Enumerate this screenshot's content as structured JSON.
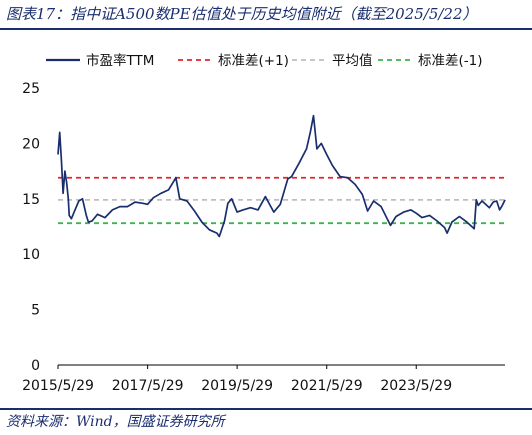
{
  "figure": {
    "title": "图表17：指中证A500数PE估值处于历史均值附近（截至2025/5/22）",
    "source": "资料来源：Wind，国盛证券研究所"
  },
  "chart_data": {
    "type": "line",
    "title": "",
    "xlabel": "",
    "ylabel": "",
    "ylim": [
      0,
      25
    ],
    "yticks": [
      0,
      5,
      10,
      15,
      20,
      25
    ],
    "xlim": [
      "2015-05-29",
      "2025-05-22"
    ],
    "xticks": [
      "2015-05-29",
      "2017-05-29",
      "2019-05-29",
      "2021-05-29",
      "2023-05-29"
    ],
    "xtick_labels": [
      "2015/5/29",
      "2017/5/29",
      "2019/5/29",
      "2021/5/29",
      "2023/5/29"
    ],
    "grid": false,
    "legend_position": "top",
    "series": [
      {
        "name": "市盈率TTM",
        "color": "#1a2e6e",
        "style": "solid",
        "points": [
          [
            "2015-05-29",
            19.0
          ],
          [
            "2015-06-12",
            21.0
          ],
          [
            "2015-06-26",
            18.5
          ],
          [
            "2015-07-10",
            15.5
          ],
          [
            "2015-07-24",
            17.5
          ],
          [
            "2015-08-07",
            16.5
          ],
          [
            "2015-08-21",
            15.0
          ],
          [
            "2015-08-28",
            13.5
          ],
          [
            "2015-09-15",
            13.2
          ],
          [
            "2015-10-15",
            14.0
          ],
          [
            "2015-11-15",
            14.8
          ],
          [
            "2015-12-15",
            15.0
          ],
          [
            "2016-01-15",
            13.5
          ],
          [
            "2016-02-01",
            12.9
          ],
          [
            "2016-03-01",
            13.0
          ],
          [
            "2016-04-15",
            13.6
          ],
          [
            "2016-06-15",
            13.3
          ],
          [
            "2016-08-15",
            14.0
          ],
          [
            "2016-10-15",
            14.3
          ],
          [
            "2016-12-15",
            14.3
          ],
          [
            "2017-02-15",
            14.7
          ],
          [
            "2017-04-15",
            14.6
          ],
          [
            "2017-05-29",
            14.5
          ],
          [
            "2017-07-15",
            15.1
          ],
          [
            "2017-09-15",
            15.5
          ],
          [
            "2017-11-15",
            15.8
          ],
          [
            "2018-01-15",
            16.9
          ],
          [
            "2018-02-15",
            15.0
          ],
          [
            "2018-04-15",
            14.8
          ],
          [
            "2018-06-15",
            13.9
          ],
          [
            "2018-08-15",
            12.9
          ],
          [
            "2018-10-15",
            12.2
          ],
          [
            "2018-12-15",
            11.9
          ],
          [
            "2019-01-04",
            11.6
          ],
          [
            "2019-02-15",
            13.0
          ],
          [
            "2019-03-15",
            14.6
          ],
          [
            "2019-04-15",
            15.0
          ],
          [
            "2019-05-29",
            13.8
          ],
          [
            "2019-07-15",
            14.0
          ],
          [
            "2019-09-15",
            14.2
          ],
          [
            "2019-11-15",
            14.0
          ],
          [
            "2020-01-15",
            15.2
          ],
          [
            "2020-03-23",
            13.8
          ],
          [
            "2020-05-15",
            14.5
          ],
          [
            "2020-07-15",
            16.8
          ],
          [
            "2020-08-15",
            17.0
          ],
          [
            "2020-10-15",
            18.2
          ],
          [
            "2020-12-15",
            19.5
          ],
          [
            "2021-01-15",
            21.0
          ],
          [
            "2021-02-10",
            22.5
          ],
          [
            "2021-03-10",
            19.5
          ],
          [
            "2021-04-15",
            20.0
          ],
          [
            "2021-05-29",
            19.0
          ],
          [
            "2021-07-15",
            18.0
          ],
          [
            "2021-09-15",
            17.0
          ],
          [
            "2021-11-15",
            16.9
          ],
          [
            "2022-01-15",
            16.3
          ],
          [
            "2022-03-15",
            15.4
          ],
          [
            "2022-04-27",
            13.9
          ],
          [
            "2022-06-15",
            14.8
          ],
          [
            "2022-08-15",
            14.3
          ],
          [
            "2022-10-31",
            12.6
          ],
          [
            "2022-12-15",
            13.4
          ],
          [
            "2023-02-15",
            13.8
          ],
          [
            "2023-04-15",
            14.0
          ],
          [
            "2023-05-29",
            13.7
          ],
          [
            "2023-07-15",
            13.3
          ],
          [
            "2023-09-15",
            13.5
          ],
          [
            "2023-11-15",
            13.0
          ],
          [
            "2024-01-15",
            12.4
          ],
          [
            "2024-02-05",
            11.9
          ],
          [
            "2024-03-15",
            12.9
          ],
          [
            "2024-05-15",
            13.4
          ],
          [
            "2024-07-15",
            12.9
          ],
          [
            "2024-09-13",
            12.3
          ],
          [
            "2024-09-30",
            14.9
          ],
          [
            "2024-10-15",
            14.4
          ],
          [
            "2024-11-15",
            14.8
          ],
          [
            "2024-12-15",
            14.5
          ],
          [
            "2025-01-15",
            14.2
          ],
          [
            "2025-02-15",
            14.7
          ],
          [
            "2025-03-15",
            14.8
          ],
          [
            "2025-04-08",
            14.0
          ],
          [
            "2025-04-30",
            14.4
          ],
          [
            "2025-05-22",
            14.9
          ]
        ]
      },
      {
        "name": "标准差(+1)",
        "color": "#e8202a",
        "style": "dashed",
        "value": 16.9
      },
      {
        "name": "平均值",
        "color": "#bfbfbf",
        "style": "dashed",
        "value": 14.9
      },
      {
        "name": "标准差(-1)",
        "color": "#3cb44b",
        "style": "dashed",
        "value": 12.8
      }
    ]
  }
}
